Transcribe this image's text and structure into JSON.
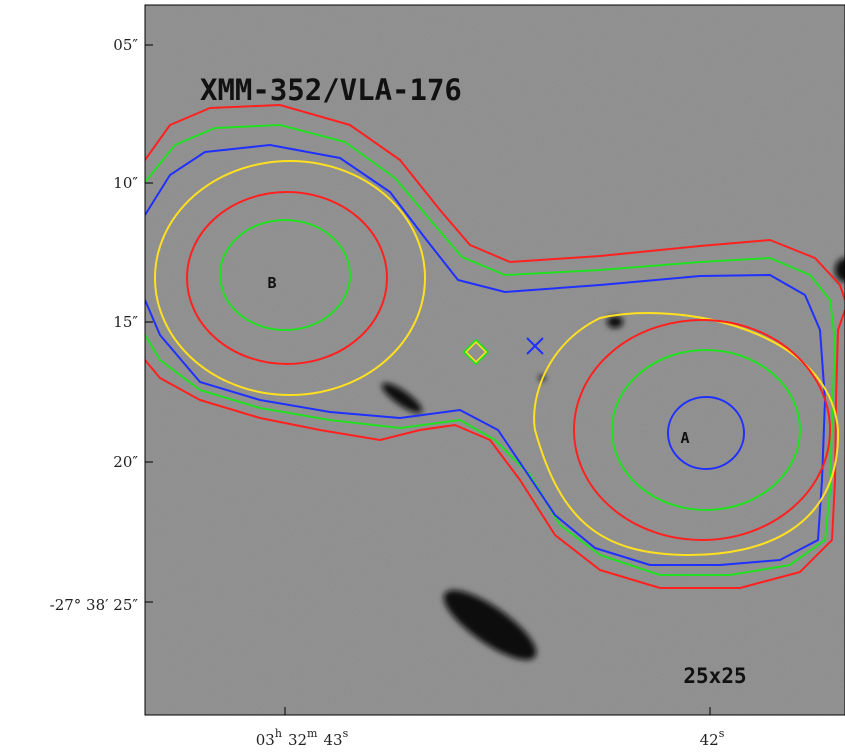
{
  "figure": {
    "title": "XMM-352/VLA-176",
    "sources": [
      "B",
      "A"
    ],
    "box_size": "25x25",
    "y_labels": [
      "05″",
      "10″",
      "15″",
      "20″",
      "-27° 38′ 25″"
    ],
    "x_labels": [
      [
        [
          "03",
          "h"
        ],
        [
          "32",
          "m"
        ],
        [
          "43",
          "s"
        ]
      ],
      [
        [
          "42",
          "s"
        ]
      ]
    ]
  }
}
